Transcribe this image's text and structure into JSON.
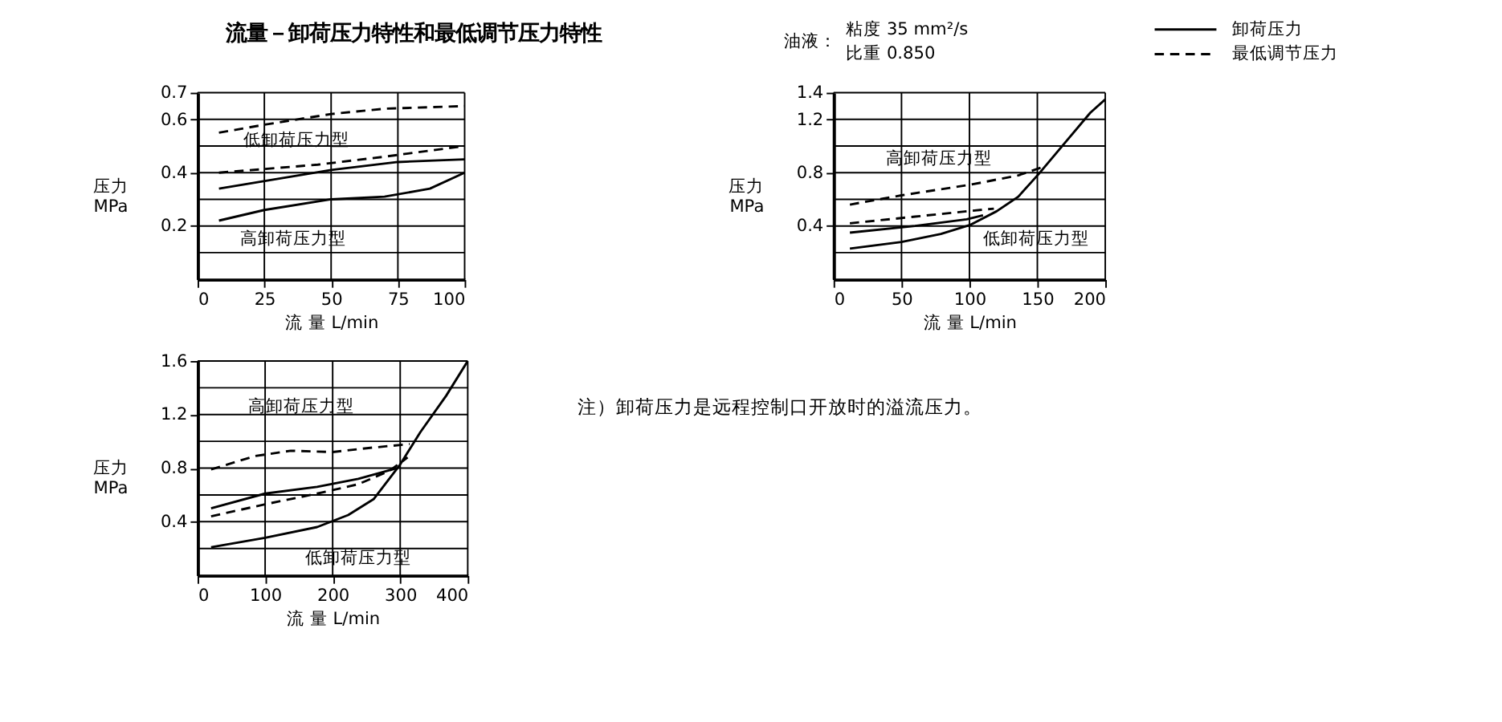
{
  "chart_data": [
    {
      "type": "line",
      "title": "流量－卸荷压力特性和最低调节压力特性",
      "xlabel": "流 量 L/min",
      "ylabel": "压力 MPa",
      "legend": "top right",
      "grid": true,
      "xlim": [
        0,
        100
      ],
      "xticks": [
        0,
        25,
        50,
        75,
        100
      ],
      "ylim": [
        0,
        0.7
      ],
      "yticks": [
        {
          "value": 0.1,
          "label": null
        },
        0.2,
        {
          "value": 0.3,
          "label": null
        },
        0.4,
        {
          "value": 0.5,
          "label": null
        },
        0.6,
        0.7
      ],
      "series": [
        {
          "name": "最低调节压力",
          "color": "#000000",
          "line_style": "dashed",
          "x": [
            8,
            25,
            50,
            70,
            100
          ],
          "values": [
            0.55,
            0.58,
            0.62,
            0.64,
            0.65
          ]
        },
        {
          "color": "#000000",
          "line_style": "dashed",
          "x": [
            8,
            45,
            70,
            100
          ],
          "values": [
            0.4,
            0.43,
            0.46,
            0.5
          ]
        },
        {
          "name": "卸荷压力",
          "color": "#000000",
          "line_style": "solid",
          "x": [
            8,
            50,
            75,
            100
          ],
          "values": [
            0.34,
            0.41,
            0.44,
            0.45
          ]
        },
        {
          "color": "#000000",
          "line_style": "solid",
          "x": [
            8,
            25,
            50,
            70,
            87,
            100
          ],
          "values": [
            0.22,
            0.26,
            0.3,
            0.31,
            0.34,
            0.4
          ]
        }
      ],
      "annotations": [
        "油液：",
        "粘度 35 mm²/s",
        "比重 0.850",
        "低卸荷压力型",
        "高卸荷压力型"
      ]
    },
    {
      "type": "line",
      "xlabel": "流 量 L/min",
      "ylabel": "压力 MPa",
      "grid": true,
      "xlim": [
        0,
        200
      ],
      "xticks": [
        0,
        50,
        100,
        150,
        200
      ],
      "ylim": [
        0,
        1.4
      ],
      "yticks": [
        {
          "value": 0.2,
          "label": null
        },
        0.4,
        {
          "value": 0.6,
          "label": null
        },
        0.8,
        {
          "value": 1.0,
          "label": null
        },
        1.2,
        1.4
      ],
      "series": [
        {
          "color": "#000000",
          "line_style": "dashed",
          "x": [
            12,
            50,
            101,
            136,
            156
          ],
          "values": [
            0.56,
            0.63,
            0.71,
            0.78,
            0.85
          ]
        },
        {
          "color": "#000000",
          "line_style": "dashed",
          "x": [
            12,
            60,
            98,
            118
          ],
          "values": [
            0.42,
            0.47,
            0.51,
            0.53
          ]
        },
        {
          "color": "#000000",
          "line_style": "solid",
          "x": [
            12,
            60,
            98,
            110
          ],
          "values": [
            0.35,
            0.4,
            0.45,
            0.48
          ]
        },
        {
          "color": "#000000",
          "line_style": "solid",
          "x": [
            12,
            50,
            79,
            101,
            120,
            136,
            151,
            170,
            189,
            200
          ],
          "values": [
            0.23,
            0.28,
            0.34,
            0.41,
            0.51,
            0.62,
            0.79,
            1.02,
            1.25,
            1.35
          ]
        }
      ],
      "annotations": [
        "高卸荷压力型",
        "低卸荷压力型"
      ]
    },
    {
      "type": "line",
      "xlabel": "流 量 L/min",
      "ylabel": "压力 MPa",
      "grid": true,
      "xlim": [
        0,
        400
      ],
      "xticks": [
        0,
        100,
        200,
        300,
        400
      ],
      "ylim": [
        0,
        1.6
      ],
      "yticks": [
        {
          "value": 0.2,
          "label": null
        },
        0.4,
        {
          "value": 0.6,
          "label": null
        },
        0.8,
        {
          "value": 1.0,
          "label": null
        },
        1.2,
        {
          "value": 1.4,
          "label": null
        },
        1.6
      ],
      "series": [
        {
          "color": "#000000",
          "line_style": "dashed",
          "x": [
            20,
            85,
            138,
            200,
            253,
            314
          ],
          "values": [
            0.79,
            0.89,
            0.93,
            0.92,
            0.95,
            0.98
          ]
        },
        {
          "color": "#000000",
          "line_style": "solid",
          "x": [
            20,
            100,
            177,
            238,
            295
          ],
          "values": [
            0.5,
            0.61,
            0.66,
            0.72,
            0.8
          ]
        },
        {
          "color": "#000000",
          "line_style": "dashed",
          "x": [
            20,
            100,
            177,
            238,
            284,
            311
          ],
          "values": [
            0.44,
            0.53,
            0.61,
            0.68,
            0.78,
            0.88
          ]
        },
        {
          "color": "#000000",
          "line_style": "solid",
          "x": [
            20,
            100,
            177,
            223,
            261,
            299,
            330,
            368,
            400
          ],
          "values": [
            0.21,
            0.28,
            0.36,
            0.45,
            0.57,
            0.82,
            1.07,
            1.34,
            1.6
          ]
        }
      ],
      "annotations": [
        "高卸荷压力型",
        "低卸荷压力型",
        "注）卸荷压力是远程控制口开放时的溢流压力。"
      ]
    }
  ]
}
